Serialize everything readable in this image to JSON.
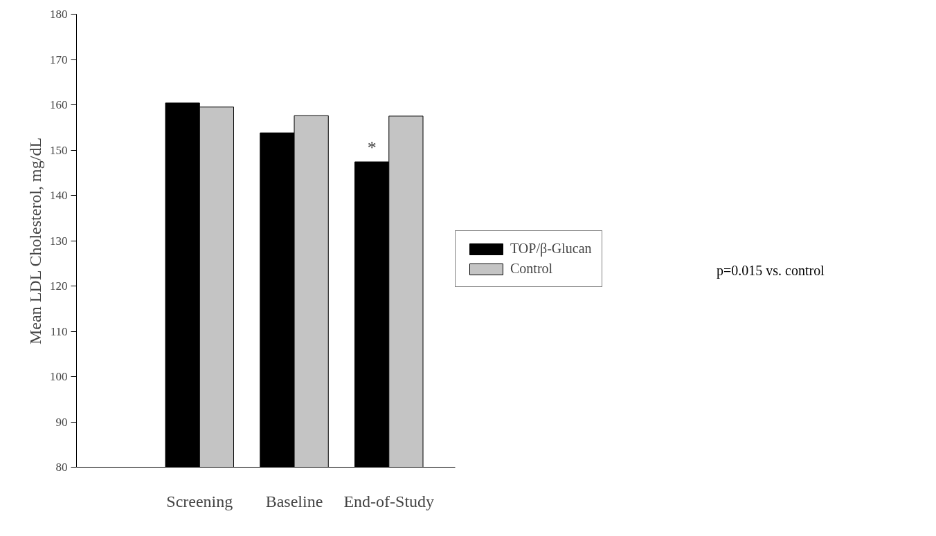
{
  "chart_data": {
    "type": "bar",
    "ylabel": "Mean LDL Cholesterol, mg/dL",
    "categories": [
      "Screening",
      "Baseline",
      "End-of-Study"
    ],
    "series": [
      {
        "name": "TOP/β-Glucan",
        "color": "#000000",
        "values": [
          160.4,
          153.8,
          147.4
        ]
      },
      {
        "name": "Control",
        "color": "#c4c4c4",
        "values": [
          159.5,
          157.6,
          157.5
        ]
      }
    ],
    "ylim": [
      80,
      180
    ],
    "yticks": [
      80,
      90,
      100,
      110,
      120,
      130,
      140,
      150,
      160,
      170,
      180
    ],
    "grid": false,
    "legend": "right",
    "annotations": [
      {
        "text": "*",
        "x": "End-of-Study",
        "y": 147.4
      },
      "p=0.015 vs. control"
    ]
  }
}
